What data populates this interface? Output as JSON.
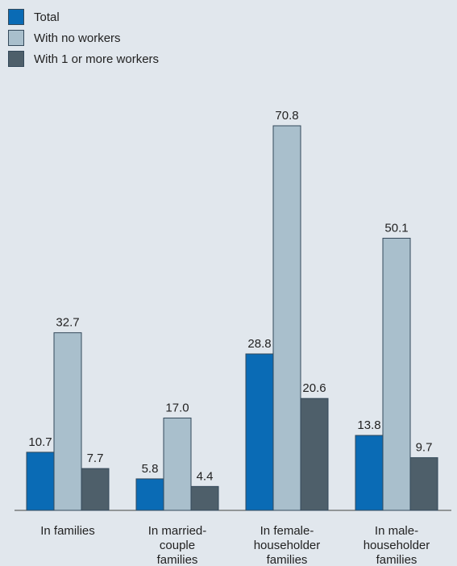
{
  "chart_data": {
    "type": "bar",
    "categories": [
      [
        "In families"
      ],
      [
        "In married-",
        "couple",
        "families"
      ],
      [
        "In female-",
        "householder",
        "families"
      ],
      [
        "In male-",
        "householder",
        "families"
      ]
    ],
    "series": [
      {
        "name": "Total",
        "color": "#0a6bb5",
        "values": [
          10.7,
          5.8,
          28.8,
          13.8
        ],
        "labels": [
          "10.7",
          "5.8",
          "28.8",
          "13.8"
        ]
      },
      {
        "name": "With no workers",
        "color": "#a9bfcc",
        "values": [
          32.7,
          17.0,
          70.8,
          50.1
        ],
        "labels": [
          "32.7",
          "17.0",
          "70.8",
          "50.1"
        ]
      },
      {
        "name": "With 1 or more workers",
        "color": "#4e5f6a",
        "values": [
          7.7,
          4.4,
          20.6,
          9.7
        ],
        "labels": [
          "7.7",
          "4.4",
          "20.6",
          "9.7"
        ]
      }
    ],
    "ylim": [
      0,
      80
    ],
    "grid": false,
    "legend": "top-left",
    "title": "",
    "xlabel": "",
    "ylabel": ""
  }
}
